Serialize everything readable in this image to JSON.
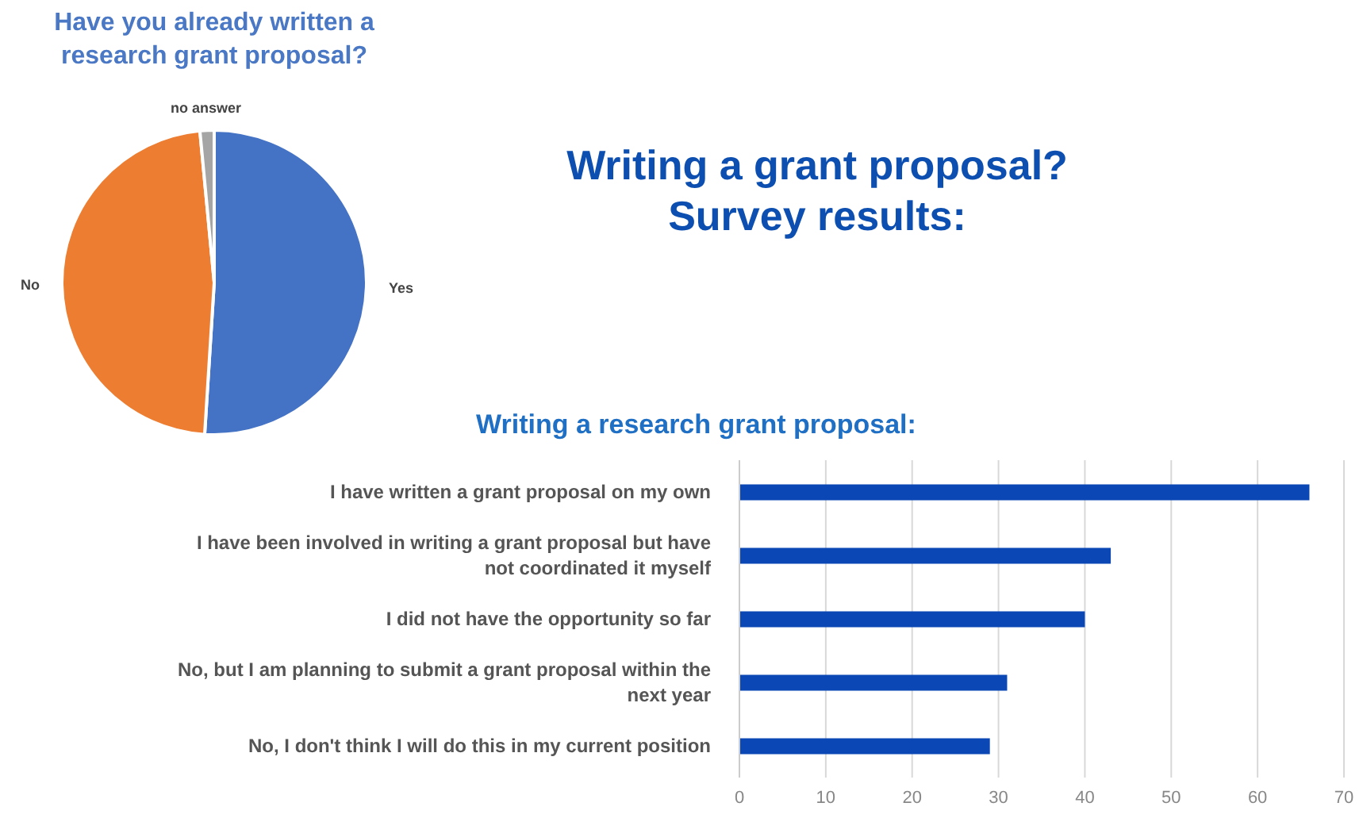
{
  "chart_data": [
    {
      "type": "pie",
      "title": "Have you already written a research grant proposal?",
      "categories": [
        "Yes",
        "No",
        "no answer"
      ],
      "values": [
        51,
        47.5,
        1.5
      ],
      "colors": [
        "#4472c4",
        "#ed7d31",
        "#a5a5a5"
      ]
    },
    {
      "type": "other",
      "title": "Writing a grant proposal? Survey results:"
    },
    {
      "type": "bar",
      "orientation": "horizontal",
      "title": "Writing a research grant proposal:",
      "categories": [
        "I have written a grant proposal on my own",
        "I have been involved in writing a grant proposal but have not coordinated it myself",
        "I did not have the opportunity so far",
        "No, but I am planning to submit a grant proposal within the next year",
        "No, I don't think I will do this in my current position"
      ],
      "values": [
        66,
        43,
        40,
        31,
        29
      ],
      "color": "#0b47b5",
      "xlim": [
        0,
        70
      ],
      "xticks": [
        0,
        10,
        20,
        30,
        40,
        50,
        60,
        70
      ],
      "grid": "x"
    }
  ]
}
